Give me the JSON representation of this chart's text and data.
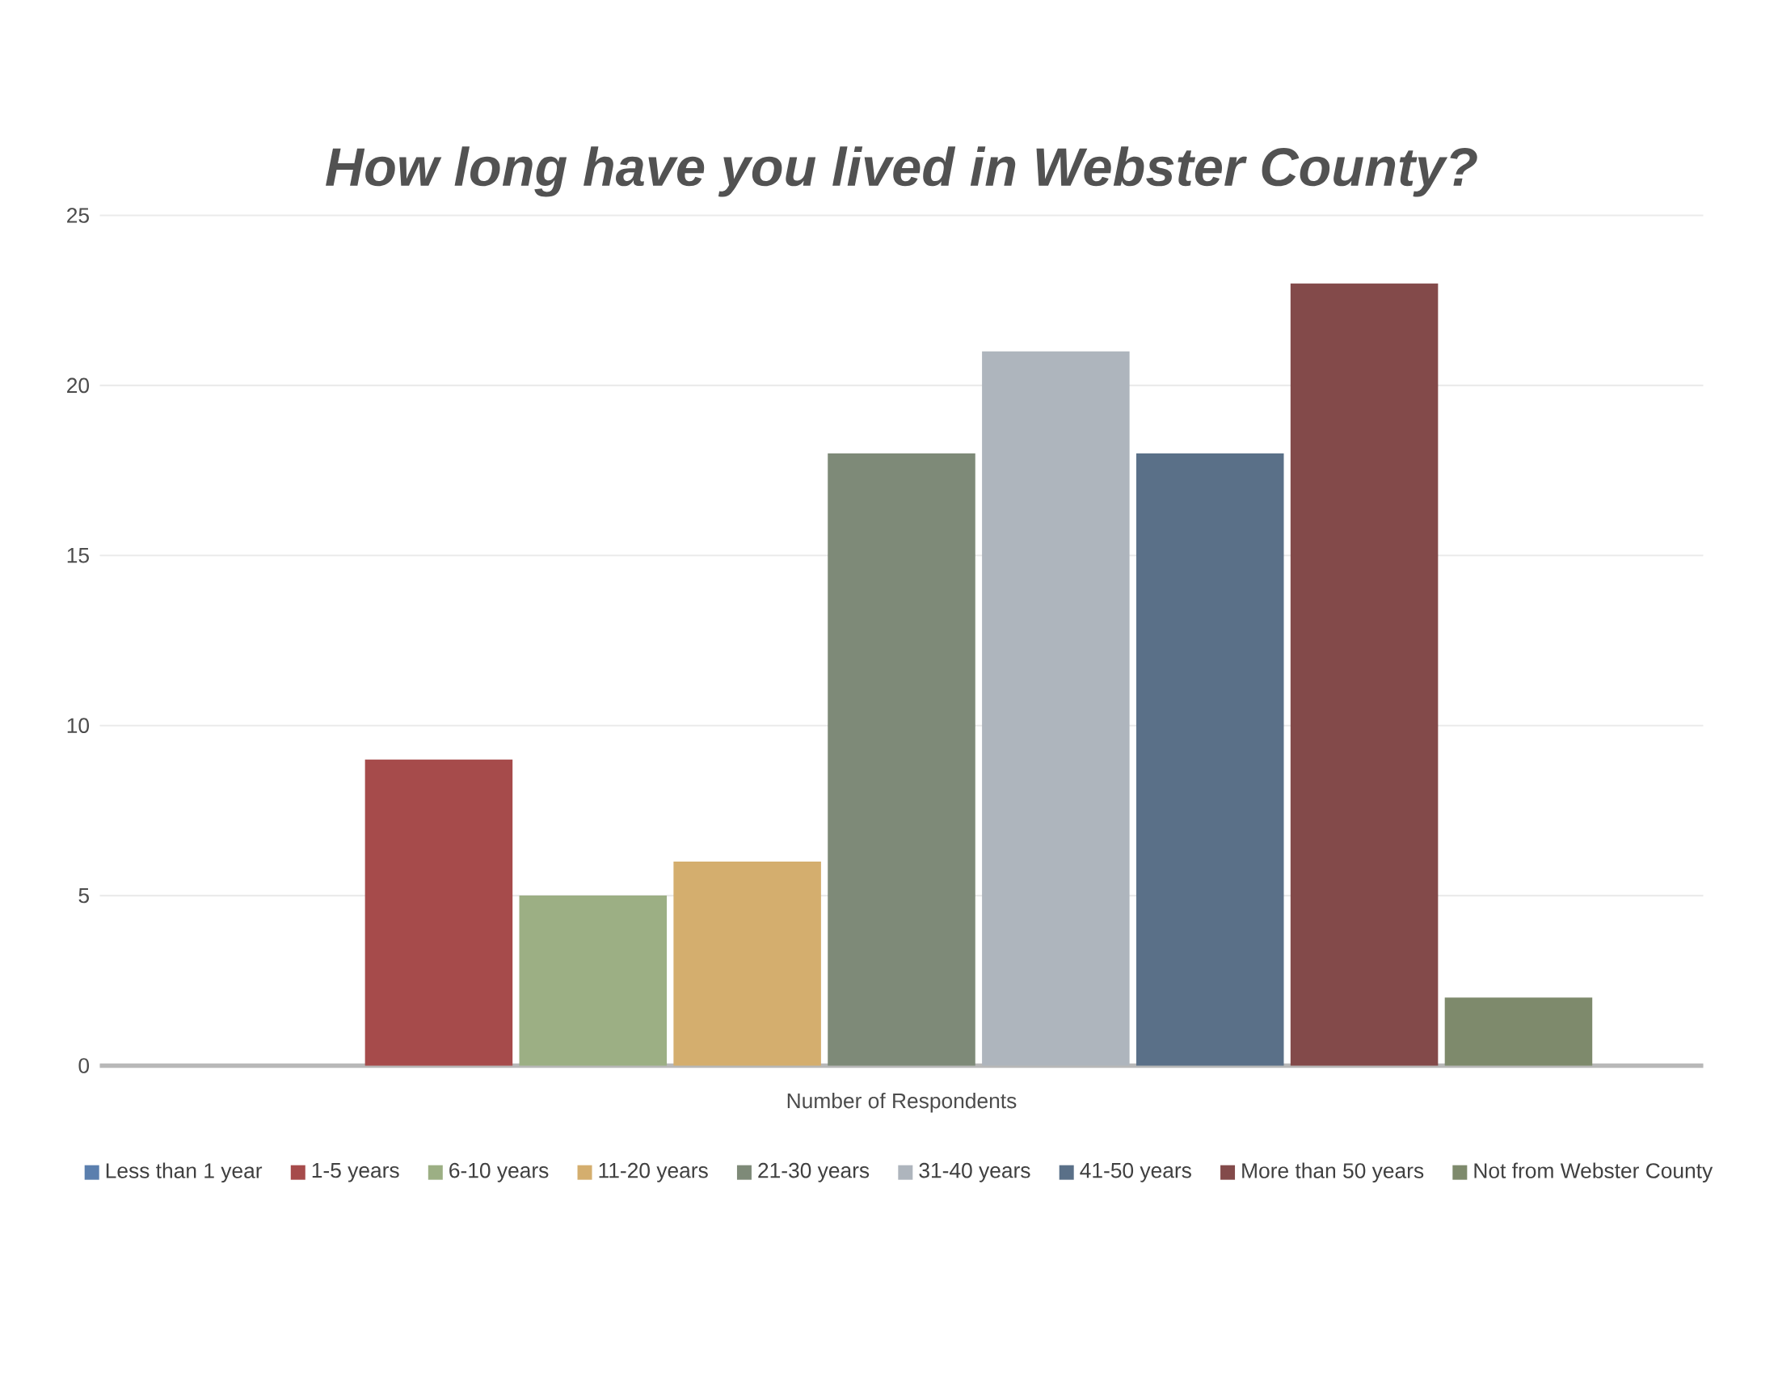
{
  "chart_data": {
    "type": "bar",
    "title": "*How long have you lived in Webster County?*",
    "categories": [
      "Number of Respondents"
    ],
    "series": [
      {
        "name": "Less than 1 year",
        "color": "#5b7fae",
        "values": [
          0
        ]
      },
      {
        "name": "1-5 years",
        "color": "#a64b4b",
        "values": [
          9
        ]
      },
      {
        "name": "6-10 years",
        "color": "#9caf84",
        "values": [
          5
        ]
      },
      {
        "name": "11-20 years",
        "color": "#d4ae6e",
        "values": [
          6
        ]
      },
      {
        "name": "21-30 years",
        "color": "#7e8a78",
        "values": [
          18
        ]
      },
      {
        "name": "31-40 years",
        "color": "#aeb5bd",
        "values": [
          21
        ]
      },
      {
        "name": "41-50 years",
        "color": "#5a7088",
        "values": [
          18
        ]
      },
      {
        "name": "More than 50 years",
        "color": "#834a4a",
        "values": [
          23
        ]
      },
      {
        "name": "Not from Webster County",
        "color": "#7e8a6c",
        "values": [
          2
        ]
      }
    ],
    "ylim": [
      0,
      25
    ],
    "yticks": [
      0,
      5,
      10,
      15,
      20,
      25
    ],
    "grid": "y",
    "legend": "bottom"
  }
}
